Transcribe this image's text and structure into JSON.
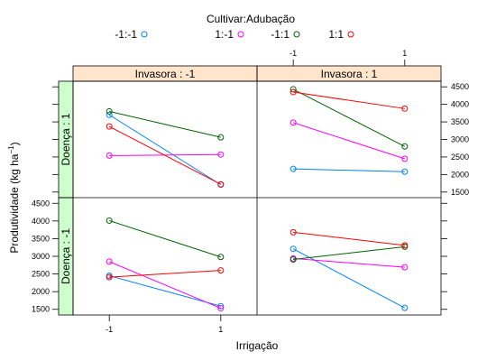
{
  "chart_data": {
    "type": "line",
    "legend": {
      "title": "Cultivar:Adubação",
      "placement": "top",
      "entries": [
        {
          "label": "-1:-1",
          "color": "#0080ff"
        },
        {
          "label": "1:-1",
          "color": "#ff00ff"
        },
        {
          "label": "-1:1",
          "color": "#006400"
        },
        {
          "label": "1:1",
          "color": "#ff0000"
        }
      ]
    },
    "xlabel": "Irrigação",
    "ylabel": "Produtividade (kg ha",
    "ylabel_sup": "−1",
    "ylabel_close": ")",
    "x_ticks": [
      -1,
      1
    ],
    "x_tick_labels": [
      "-1",
      "1"
    ],
    "x_range": [
      -1.65,
      1.65
    ],
    "y_ticks": [
      1500,
      2000,
      2500,
      3000,
      3500,
      4000,
      4500
    ],
    "y_tick_labels": [
      "1500",
      "2000",
      "2500",
      "3000",
      "3500",
      "4000",
      "4500"
    ],
    "y_range": [
      1340,
      4660
    ],
    "strip_columns": [
      "Invasora : -1",
      "Invasora : 1"
    ],
    "strip_rows": [
      "Doença : 1",
      "Doença : -1"
    ],
    "panels": [
      {
        "col": 0,
        "row": 0,
        "series": [
          {
            "color": "#0080ff",
            "values": [
              3700,
              1710
            ]
          },
          {
            "color": "#ff00ff",
            "values": [
              2540,
              2570
            ]
          },
          {
            "color": "#006400",
            "values": [
              3800,
              3060
            ]
          },
          {
            "color": "#ff0000",
            "values": [
              3370,
              1720
            ]
          }
        ]
      },
      {
        "col": 1,
        "row": 0,
        "series": [
          {
            "color": "#0080ff",
            "values": [
              2160,
              2080
            ]
          },
          {
            "color": "#ff00ff",
            "values": [
              3480,
              2450
            ]
          },
          {
            "color": "#006400",
            "values": [
              4430,
              2800
            ]
          },
          {
            "color": "#ff0000",
            "values": [
              4350,
              3880
            ]
          }
        ]
      },
      {
        "col": 0,
        "row": 1,
        "series": [
          {
            "color": "#0080ff",
            "values": [
              2450,
              1590
            ]
          },
          {
            "color": "#ff00ff",
            "values": [
              2850,
              1530
            ]
          },
          {
            "color": "#006400",
            "values": [
              4010,
              2980
            ]
          },
          {
            "color": "#ff0000",
            "values": [
              2410,
              2600
            ]
          }
        ]
      },
      {
        "col": 1,
        "row": 1,
        "series": [
          {
            "color": "#0080ff",
            "values": [
              3210,
              1540
            ]
          },
          {
            "color": "#ff00ff",
            "values": [
              2940,
              2690
            ]
          },
          {
            "color": "#006400",
            "values": [
              2910,
              3270
            ]
          },
          {
            "color": "#ff0000",
            "values": [
              3680,
              3310
            ]
          }
        ]
      }
    ],
    "strip_color": "#ffe5cc",
    "strip_row_color": "#ccffcc",
    "grid": false
  }
}
